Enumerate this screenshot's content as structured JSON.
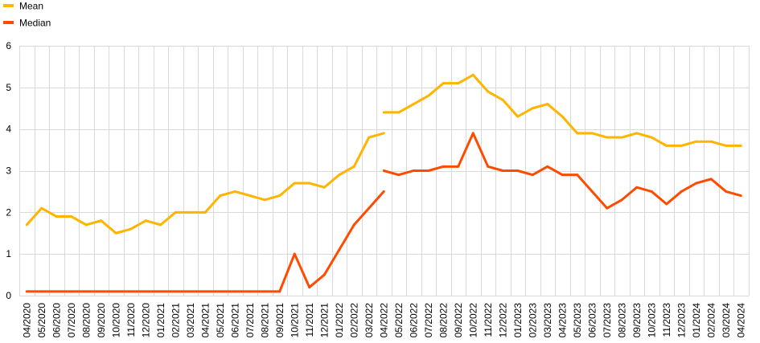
{
  "chart_data": {
    "type": "line",
    "legend": "top-left",
    "grid": true,
    "ylim": [
      0,
      6
    ],
    "yticks": [
      0,
      1,
      2,
      3,
      4,
      5,
      6
    ],
    "categories": [
      "04/2020",
      "05/2020",
      "06/2020",
      "07/2020",
      "08/2020",
      "09/2020",
      "10/2020",
      "11/2020",
      "12/2020",
      "01/2021",
      "02/2021",
      "03/2021",
      "04/2021",
      "05/2021",
      "06/2021",
      "07/2021",
      "08/2021",
      "09/2021",
      "10/2021",
      "11/2021",
      "12/2021",
      "01/2022",
      "02/2022",
      "03/2022",
      "04/2022",
      "05/2022",
      "06/2022",
      "07/2022",
      "08/2022",
      "09/2022",
      "10/2022",
      "11/2022",
      "12/2022",
      "01/2023",
      "02/2023",
      "03/2023",
      "04/2023",
      "05/2023",
      "06/2023",
      "07/2023",
      "08/2023",
      "09/2023",
      "10/2023",
      "11/2023",
      "12/2023",
      "01/2024",
      "02/2024",
      "03/2024",
      "04/2024"
    ],
    "series": [
      {
        "name": "Mean",
        "color": "#FFB400",
        "segments": [
          {
            "start": "04/2020",
            "values": [
              1.7,
              2.1,
              1.9,
              1.9,
              1.7,
              1.8,
              1.5,
              1.6,
              1.8,
              1.7,
              2.0,
              2.0,
              2.0,
              2.4,
              2.5,
              2.4,
              2.3,
              2.4,
              2.7,
              2.7,
              2.6,
              2.9,
              3.1,
              3.8,
              3.9
            ]
          },
          {
            "start": "04/2022",
            "values": [
              4.4,
              4.4,
              4.6,
              4.8,
              5.1,
              5.1,
              5.3,
              4.9,
              4.7,
              4.3,
              4.5,
              4.6,
              4.3,
              3.9,
              3.9,
              3.8,
              3.8,
              3.9,
              3.8,
              3.6,
              3.6,
              3.7,
              3.7,
              3.6,
              3.6
            ]
          }
        ]
      },
      {
        "name": "Median",
        "color": "#FF4B00",
        "segments": [
          {
            "start": "04/2020",
            "values": [
              0.1,
              0.1,
              0.1,
              0.1,
              0.1,
              0.1,
              0.1,
              0.1,
              0.1,
              0.1,
              0.1,
              0.1,
              0.1,
              0.1,
              0.1,
              0.1,
              0.1,
              0.1,
              1.0,
              0.2,
              0.5,
              1.1,
              1.7,
              2.1,
              2.5
            ]
          },
          {
            "start": "04/2022",
            "values": [
              3.0,
              2.9,
              3.0,
              3.0,
              3.1,
              3.1,
              3.9,
              3.1,
              3.0,
              3.0,
              2.9,
              3.1,
              2.9,
              2.9,
              2.5,
              2.1,
              2.3,
              2.6,
              2.5,
              2.2,
              2.5,
              2.7,
              2.8,
              2.5,
              2.4
            ]
          }
        ]
      }
    ]
  }
}
